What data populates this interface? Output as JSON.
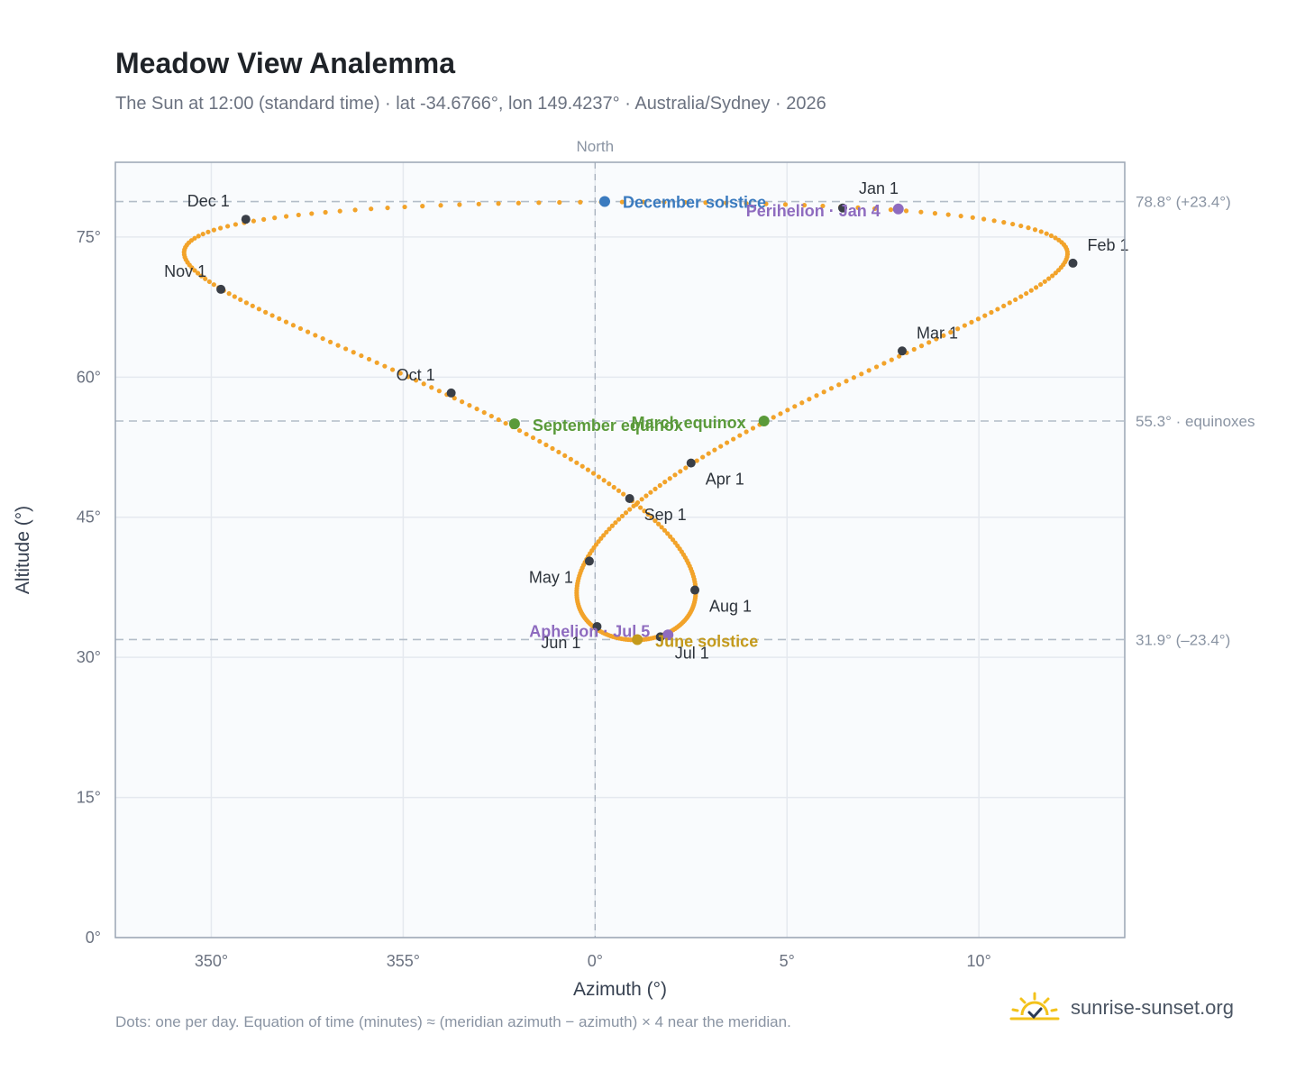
{
  "header": {
    "title": "Meadow View Analemma",
    "subtitle": "The Sun at 12:00 (standard time) · lat -34.6766°, lon 149.4237° · Australia/Sydney · 2026"
  },
  "footer": {
    "note": "Dots: one per day. Equation of time (minutes) ≈ (meridian azimuth − azimuth) × 4 near the meridian.",
    "brand": "sunrise-sunset.org"
  },
  "colors": {
    "path": "#f2a32a",
    "month_marker": "#3a3f47",
    "solstice_december": "#3b7bbf",
    "equinox": "#5a9a3a",
    "apsis": "#8e6bbf",
    "solstice_june": "#c49a1c",
    "grid": "#e5e9ef",
    "plot_bg": "#f9fbfd",
    "frame": "#9aa5b4",
    "ref_line": "#b3bdc8"
  },
  "chart_data": {
    "type": "scatter",
    "xlabel": "Azimuth (°)",
    "ylabel": "Altitude (°)",
    "xlim": [
      347.5,
      13.8
    ],
    "ylim": [
      0,
      83
    ],
    "x_ticks": [
      {
        "value": 350,
        "label": "350°"
      },
      {
        "value": 355,
        "label": "355°"
      },
      {
        "value": 0,
        "label": "0°"
      },
      {
        "value": 5,
        "label": "5°"
      },
      {
        "value": 10,
        "label": "10°"
      }
    ],
    "y_ticks": [
      {
        "value": 0,
        "label": "0°"
      },
      {
        "value": 15,
        "label": "15°"
      },
      {
        "value": 30,
        "label": "30°"
      },
      {
        "value": 45,
        "label": "45°"
      },
      {
        "value": 60,
        "label": "60°"
      },
      {
        "value": 75,
        "label": "75°"
      }
    ],
    "grid": true,
    "meridian": {
      "azimuth": 0,
      "label": "North"
    },
    "reference_lines": [
      {
        "altitude": 78.8,
        "label": "78.8° (+23.4°)"
      },
      {
        "altitude": 55.3,
        "label": "55.3° · equinoxes"
      },
      {
        "altitude": 31.9,
        "label": "31.9° (–23.4°)"
      }
    ],
    "months": [
      {
        "label": "Jan 1",
        "az": 6.45,
        "alt": 78.1
      },
      {
        "label": "Feb 1",
        "az": 12.45,
        "alt": 72.2
      },
      {
        "label": "Mar 1",
        "az": 8.0,
        "alt": 62.8
      },
      {
        "label": "Apr 1",
        "az": 2.5,
        "alt": 50.8
      },
      {
        "label": "May 1",
        "az": -0.15,
        "alt": 40.3
      },
      {
        "label": "Jun 1",
        "az": 0.05,
        "alt": 33.3
      },
      {
        "label": "Jul 1",
        "az": 1.7,
        "alt": 32.2
      },
      {
        "label": "Aug 1",
        "az": 2.6,
        "alt": 37.2
      },
      {
        "label": "Sep 1",
        "az": 0.9,
        "alt": 47.0
      },
      {
        "label": "Oct 1",
        "az": -3.75,
        "alt": 58.3
      },
      {
        "label": "Nov 1",
        "az": -9.75,
        "alt": 69.4
      },
      {
        "label": "Dec 1",
        "az": -9.1,
        "alt": 76.9
      }
    ],
    "events": [
      {
        "label": "December solstice",
        "az": 0.25,
        "alt": 78.8,
        "kind": "solstice_december"
      },
      {
        "label": "Perihelion · Jan 4",
        "az": 7.9,
        "alt": 78.0,
        "kind": "apsis"
      },
      {
        "label": "March equinox",
        "az": 4.4,
        "alt": 55.3,
        "kind": "equinox"
      },
      {
        "label": "September equinox",
        "az": -2.1,
        "alt": 55.0,
        "kind": "equinox"
      },
      {
        "label": "Aphelion · Jul 5",
        "az": 1.9,
        "alt": 32.4,
        "kind": "apsis"
      },
      {
        "label": "June solstice",
        "az": 1.1,
        "alt": 31.9,
        "kind": "solstice_june"
      }
    ]
  }
}
